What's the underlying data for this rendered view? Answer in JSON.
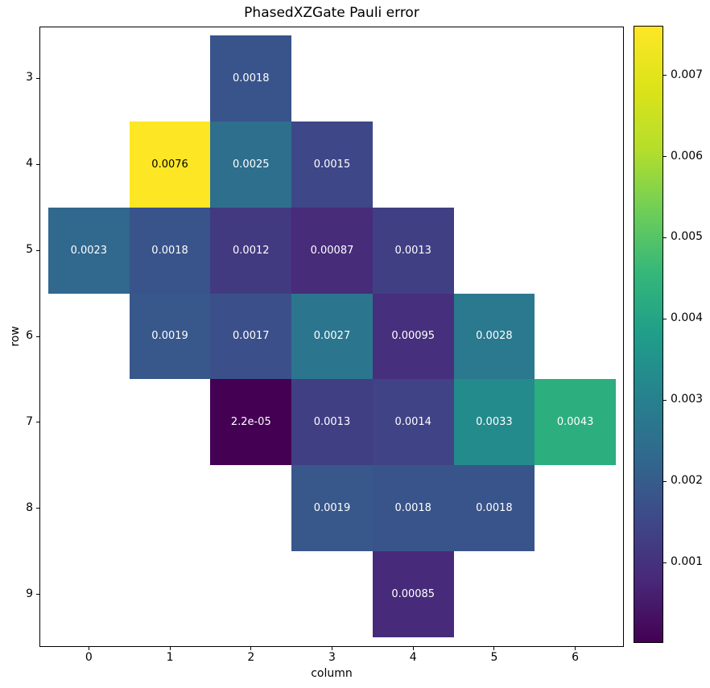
{
  "chart_data": {
    "type": "heatmap",
    "title": "PhasedXZGate Pauli error",
    "xlabel": "column",
    "ylabel": "row",
    "colormap": "viridis",
    "vmin": 2.2e-05,
    "vmax": 0.0076,
    "x_range": [
      -0.5,
      6.5
    ],
    "y_range": [
      2.5,
      9.5
    ],
    "x_ticks": [
      0,
      1,
      2,
      3,
      4,
      5,
      6
    ],
    "x_tick_labels": [
      "0",
      "1",
      "2",
      "3",
      "4",
      "5",
      "6"
    ],
    "y_ticks": [
      3,
      4,
      5,
      6,
      7,
      8,
      9
    ],
    "y_tick_labels": [
      "3",
      "4",
      "5",
      "6",
      "7",
      "8",
      "9"
    ],
    "grid": false,
    "legend": "colorbar-right",
    "colorbar_ticks": [
      {
        "value": 0.001,
        "label": "0.001"
      },
      {
        "value": 0.002,
        "label": "0.002"
      },
      {
        "value": 0.003,
        "label": "0.003"
      },
      {
        "value": 0.004,
        "label": "0.004"
      },
      {
        "value": 0.005,
        "label": "0.005"
      },
      {
        "value": 0.006,
        "label": "0.006"
      },
      {
        "value": 0.007,
        "label": "0.007"
      }
    ],
    "cells": [
      {
        "row": 3,
        "col": 2,
        "value": 0.0018,
        "label": "0.0018"
      },
      {
        "row": 4,
        "col": 1,
        "value": 0.0076,
        "label": "0.0076"
      },
      {
        "row": 4,
        "col": 2,
        "value": 0.0025,
        "label": "0.0025"
      },
      {
        "row": 4,
        "col": 3,
        "value": 0.0015,
        "label": "0.0015"
      },
      {
        "row": 5,
        "col": 0,
        "value": 0.0023,
        "label": "0.0023"
      },
      {
        "row": 5,
        "col": 1,
        "value": 0.0018,
        "label": "0.0018"
      },
      {
        "row": 5,
        "col": 2,
        "value": 0.0012,
        "label": "0.0012"
      },
      {
        "row": 5,
        "col": 3,
        "value": 0.00087,
        "label": "0.00087"
      },
      {
        "row": 5,
        "col": 4,
        "value": 0.0013,
        "label": "0.0013"
      },
      {
        "row": 6,
        "col": 1,
        "value": 0.0019,
        "label": "0.0019"
      },
      {
        "row": 6,
        "col": 2,
        "value": 0.0017,
        "label": "0.0017"
      },
      {
        "row": 6,
        "col": 3,
        "value": 0.0027,
        "label": "0.0027"
      },
      {
        "row": 6,
        "col": 4,
        "value": 0.00095,
        "label": "0.00095"
      },
      {
        "row": 6,
        "col": 5,
        "value": 0.0028,
        "label": "0.0028"
      },
      {
        "row": 7,
        "col": 2,
        "value": 2.2e-05,
        "label": "2.2e-05"
      },
      {
        "row": 7,
        "col": 3,
        "value": 0.0013,
        "label": "0.0013"
      },
      {
        "row": 7,
        "col": 4,
        "value": 0.0014,
        "label": "0.0014"
      },
      {
        "row": 7,
        "col": 5,
        "value": 0.0033,
        "label": "0.0033"
      },
      {
        "row": 7,
        "col": 6,
        "value": 0.0043,
        "label": "0.0043"
      },
      {
        "row": 8,
        "col": 3,
        "value": 0.0019,
        "label": "0.0019"
      },
      {
        "row": 8,
        "col": 4,
        "value": 0.0018,
        "label": "0.0018"
      },
      {
        "row": 8,
        "col": 5,
        "value": 0.0018,
        "label": "0.0018"
      },
      {
        "row": 9,
        "col": 4,
        "value": 0.00085,
        "label": "0.00085"
      }
    ],
    "annotation_text_colors": {
      "light_cells": "#000000",
      "dark_cells": "#ffffff"
    }
  }
}
